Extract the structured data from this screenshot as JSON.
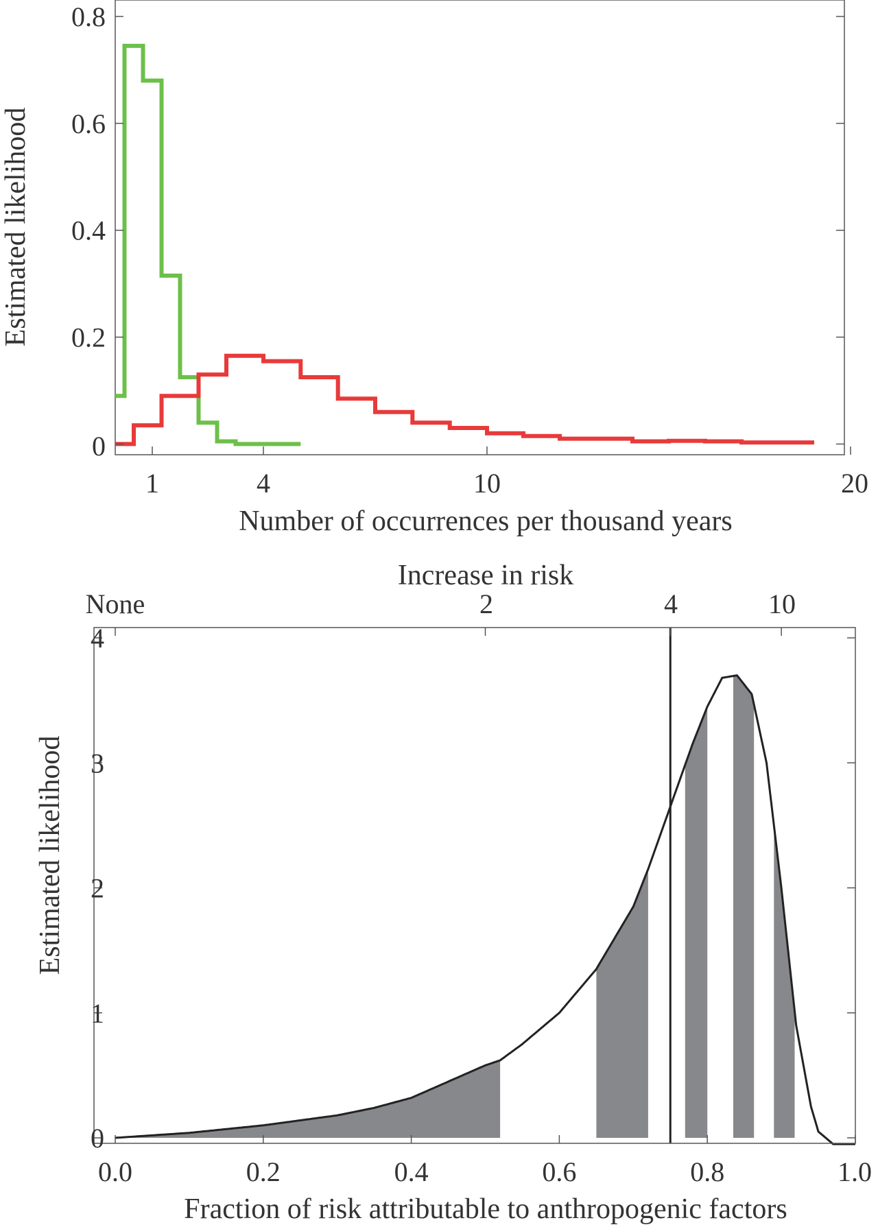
{
  "chart_data": [
    {
      "type": "histogram-step",
      "xlabel": "Number of occurrences per thousand years",
      "ylabel": "Estimated likelihood",
      "x_ticks": [
        1,
        4,
        10,
        20
      ],
      "x_tick_labels": [
        "1",
        "4",
        "10",
        "20"
      ],
      "y_ticks": [
        0,
        0.2,
        0.4,
        0.6,
        0.8
      ],
      "y_tick_labels": [
        "0",
        "0.2",
        "0.4",
        "0.6",
        "0.8"
      ],
      "xlim": [
        0,
        20
      ],
      "ylim": [
        -0.02,
        0.8
      ],
      "grid": false,
      "series": [
        {
          "color": "#6cc04a",
          "bin_edges": [
            0,
            0.25,
            0.75,
            1.25,
            1.75,
            2.25,
            2.75,
            3.25,
            5
          ],
          "values": [
            0.09,
            0.745,
            0.68,
            0.315,
            0.125,
            0.04,
            0.005,
            0.0
          ]
        },
        {
          "color": "#e83a3a",
          "bin_edges": [
            0,
            0.5,
            1.25,
            2.25,
            3,
            4,
            5,
            6,
            7,
            8,
            9,
            10,
            11,
            12,
            13,
            14,
            15,
            16,
            17,
            18,
            19
          ],
          "values": [
            0.0,
            0.035,
            0.09,
            0.13,
            0.165,
            0.155,
            0.125,
            0.085,
            0.06,
            0.04,
            0.03,
            0.02,
            0.015,
            0.01,
            0.01,
            0.005,
            0.006,
            0.005,
            0.003,
            0.003
          ]
        }
      ]
    },
    {
      "type": "area",
      "xlabel": "Fraction of risk attributable to anthropogenic factors",
      "ylabel": "Estimated likelihood",
      "top_axis_label": "Increase in risk",
      "top_ticks": [
        {
          "x": 0.0,
          "label": "None"
        },
        {
          "x": 0.5,
          "label": "2"
        },
        {
          "x": 0.75,
          "label": "4"
        },
        {
          "x": 0.9,
          "label": "10"
        }
      ],
      "x_ticks": [
        0.0,
        0.2,
        0.4,
        0.6,
        0.8,
        1.0
      ],
      "x_tick_labels": [
        "0.0",
        "0.2",
        "0.4",
        "0.6",
        "0.8",
        "1.0"
      ],
      "y_ticks": [
        0,
        1,
        2,
        3,
        4
      ],
      "y_tick_labels": [
        "0",
        "1",
        "2",
        "3",
        "4"
      ],
      "xlim": [
        0,
        1
      ],
      "ylim": [
        -0.05,
        4
      ],
      "grid": false,
      "vertical_line_x": 0.75,
      "curve": {
        "color": "#222222",
        "x": [
          0.0,
          0.05,
          0.1,
          0.15,
          0.2,
          0.25,
          0.3,
          0.35,
          0.4,
          0.45,
          0.5,
          0.52,
          0.55,
          0.6,
          0.65,
          0.7,
          0.72,
          0.75,
          0.78,
          0.8,
          0.82,
          0.84,
          0.86,
          0.88,
          0.9,
          0.92,
          0.94,
          0.95,
          0.96,
          0.97,
          1.0
        ],
        "y": [
          0.0,
          0.02,
          0.04,
          0.07,
          0.1,
          0.14,
          0.18,
          0.24,
          0.32,
          0.45,
          0.58,
          0.62,
          0.75,
          1.0,
          1.35,
          1.85,
          2.15,
          2.65,
          3.15,
          3.45,
          3.68,
          3.7,
          3.55,
          3.0,
          2.0,
          0.9,
          0.25,
          0.05,
          0.0,
          -0.05,
          -0.05
        ]
      },
      "shaded_ranges": [
        [
          0.0,
          0.52
        ],
        [
          0.65,
          0.72
        ],
        [
          0.77,
          0.8
        ],
        [
          0.835,
          0.863
        ],
        [
          0.89,
          0.918
        ]
      ],
      "shade_color": "#87888c"
    }
  ]
}
